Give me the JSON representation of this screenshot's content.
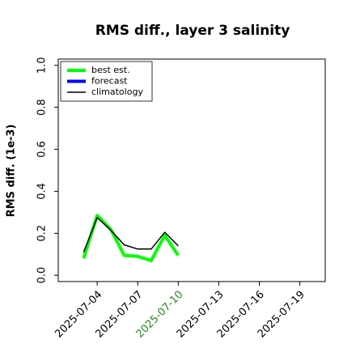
{
  "chart_data": {
    "type": "line",
    "title": "RMS diff., layer 3 salinity",
    "y_label": "RMS diff. (1e-3)",
    "x": [
      "2025-07-03",
      "2025-07-04",
      "2025-07-05",
      "2025-07-06",
      "2025-07-07",
      "2025-07-08",
      "2025-07-09",
      "2025-07-10"
    ],
    "series": [
      {
        "name": "best est.",
        "color": "#00ff00",
        "width": 4,
        "values": [
          0.08,
          0.285,
          0.22,
          0.095,
          0.09,
          0.07,
          0.19,
          0.095
        ]
      },
      {
        "name": "forecast",
        "color": "#0000ff",
        "width": 4,
        "values": [
          null,
          null,
          null,
          null,
          null,
          null,
          null,
          null
        ]
      },
      {
        "name": "climatology",
        "color": "#000000",
        "width": 1.5,
        "values": [
          0.11,
          0.275,
          0.215,
          0.145,
          0.125,
          0.125,
          0.205,
          0.14
        ]
      }
    ],
    "xlim": [
      "2025-07-01",
      "2025-07-21"
    ],
    "xticks": [
      "2025-07-04",
      "2025-07-07",
      "2025-07-10",
      "2025-07-13",
      "2025-07-16",
      "2025-07-19"
    ],
    "xtick_colors": [
      "#000000",
      "#000000",
      "#228b22",
      "#000000",
      "#000000",
      "#000000"
    ],
    "ylim": [
      -0.03,
      1.03
    ],
    "yticks": [
      {
        "value": 0,
        "label": "0.0"
      },
      0.2,
      0.4,
      0.6,
      0.8,
      {
        "value": 1,
        "label": "1.0"
      }
    ],
    "legend": "upper left"
  }
}
